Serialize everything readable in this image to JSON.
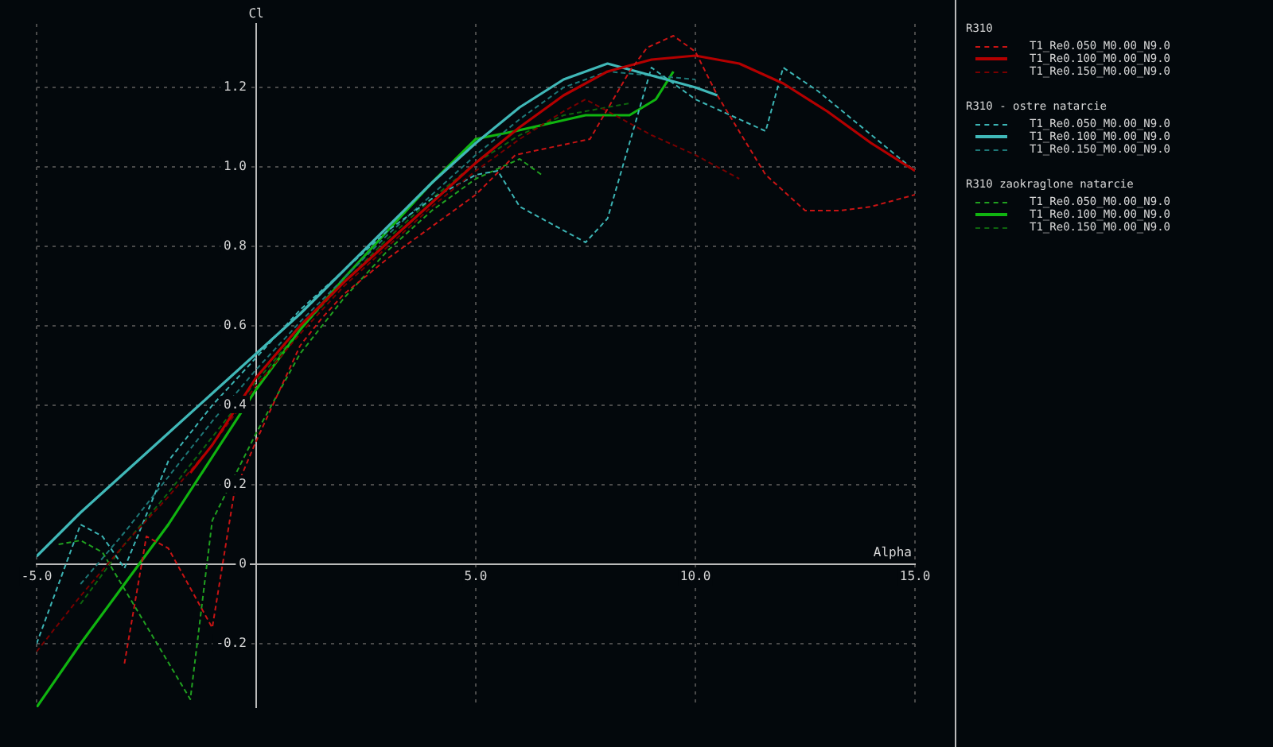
{
  "chart_data": {
    "type": "line",
    "xlabel": "Alpha",
    "ylabel": "Cl",
    "xlim": [
      -5,
      15
    ],
    "ylim": [
      -0.36,
      1.36
    ],
    "xticks": [
      {
        "value": -5,
        "label": "-5.0"
      },
      {
        "value": 0,
        "label": null
      },
      {
        "value": 5,
        "label": "5.0"
      },
      {
        "value": 10,
        "label": "10.0"
      },
      {
        "value": 15,
        "label": "15.0"
      }
    ],
    "yticks": [
      {
        "value": -0.2,
        "label": "-0.2"
      },
      0,
      {
        "value": 0.2,
        "label": "0.2"
      },
      {
        "value": 0.4,
        "label": "0.4"
      },
      {
        "value": 0.6,
        "label": "0.6"
      },
      {
        "value": 0.8,
        "label": "0.8"
      },
      {
        "value": 1.0,
        "label": "1.0"
      },
      {
        "value": 1.2,
        "label": "1.2"
      }
    ],
    "grid": true,
    "legend": "top right",
    "marker": "none",
    "annotations": [
      "R310",
      "R310 - ostre natarcie",
      "R310 zaokraglone natarcie"
    ],
    "series": [
      {
        "name": "T1_Re0.050_M0.00_N9.0",
        "color": "#c81414",
        "line_style": "dashed",
        "x": [
          -3,
          -2.5,
          -2,
          -1,
          -0.5,
          0,
          0.5,
          1,
          1.5,
          2,
          3,
          4,
          5,
          5.9,
          7.6,
          8.5,
          8.9,
          9.5,
          10,
          10.5,
          11.6,
          12.5,
          13.3,
          14,
          15
        ],
        "values": [
          -0.25,
          0.07,
          0.04,
          -0.16,
          0.18,
          0.31,
          0.43,
          0.55,
          0.62,
          0.68,
          0.77,
          0.85,
          0.93,
          1.03,
          1.07,
          1.24,
          1.3,
          1.33,
          1.29,
          1.18,
          0.98,
          0.89,
          0.89,
          0.9,
          0.93
        ]
      },
      {
        "name": "T1_Re0.100_M0.00_N9.0",
        "color": "#b40000",
        "line_style": "solid",
        "x": [
          -1.5,
          -1,
          0,
          1,
          2,
          3,
          4,
          5,
          6,
          7,
          8,
          9,
          10,
          11,
          12,
          13,
          14,
          15
        ],
        "values": [
          0.23,
          0.3,
          0.47,
          0.6,
          0.71,
          0.81,
          0.91,
          1.01,
          1.1,
          1.18,
          1.24,
          1.27,
          1.28,
          1.26,
          1.21,
          1.14,
          1.06,
          0.99
        ]
      },
      {
        "name": "T1_Re0.150_M0.00_N9.0",
        "color": "#780000",
        "line_style": "dashed",
        "x": [
          -5,
          -4,
          -3,
          -2,
          -1,
          0,
          1,
          2,
          3,
          4,
          5,
          6,
          7,
          7.5,
          8,
          9,
          10,
          11
        ],
        "values": [
          -0.22,
          -0.08,
          0.05,
          0.17,
          0.3,
          0.45,
          0.58,
          0.7,
          0.8,
          0.9,
          0.99,
          1.07,
          1.14,
          1.17,
          1.14,
          1.08,
          1.03,
          0.97
        ]
      },
      {
        "name": "T1_Re0.050_M0.00_N9.0",
        "color": "#3cb4b4",
        "line_style": "dashed",
        "x": [
          -5,
          -4,
          -3.5,
          -3,
          -2,
          -1,
          0,
          1,
          2,
          3,
          4,
          5,
          5.5,
          6,
          7.5,
          8,
          9,
          10,
          11.6,
          12,
          12.8,
          15
        ],
        "values": [
          -0.2,
          0.1,
          0.07,
          -0.01,
          0.26,
          0.4,
          0.52,
          0.64,
          0.74,
          0.84,
          0.92,
          0.98,
          0.99,
          0.9,
          0.81,
          0.87,
          1.25,
          1.17,
          1.09,
          1.25,
          1.19,
          0.99
        ]
      },
      {
        "name": "T1_Re0.100_M0.00_N9.0",
        "color": "#40b8b8",
        "line_style": "solid",
        "x": [
          -5,
          -4,
          -3,
          -2,
          -1,
          0,
          1,
          2,
          3,
          4,
          5,
          6,
          7,
          8,
          9,
          10,
          10.5
        ],
        "values": [
          0.02,
          0.13,
          0.23,
          0.33,
          0.43,
          0.53,
          0.63,
          0.74,
          0.85,
          0.96,
          1.06,
          1.15,
          1.22,
          1.26,
          1.23,
          1.2,
          1.18
        ]
      },
      {
        "name": "T1_Re0.150_M0.00_N9.0",
        "color": "#1e7878",
        "line_style": "dashed",
        "x": [
          -4,
          -3,
          -2,
          -1,
          0,
          1,
          2,
          3,
          4,
          5,
          6,
          7,
          8,
          9,
          10
        ],
        "values": [
          -0.05,
          0.08,
          0.22,
          0.36,
          0.49,
          0.61,
          0.72,
          0.83,
          0.93,
          1.03,
          1.12,
          1.2,
          1.24,
          1.23,
          1.22
        ]
      },
      {
        "name": "T1_Re0.050_M0.00_N9.0",
        "color": "#20a020",
        "line_style": "dashed",
        "x": [
          -4.5,
          -4,
          -3.5,
          -1.5,
          -1,
          0,
          1,
          2,
          3,
          4,
          5,
          6,
          6.5
        ],
        "values": [
          0.05,
          0.06,
          0.03,
          -0.34,
          0.11,
          0.33,
          0.53,
          0.67,
          0.79,
          0.89,
          0.97,
          1.02,
          0.98
        ]
      },
      {
        "name": "T1_Re0.100_M0.00_N9.0",
        "color": "#10b410",
        "line_style": "solid",
        "x": [
          -5,
          -4,
          -3,
          -2,
          -1,
          0,
          1,
          2,
          3,
          4,
          5,
          5.9,
          7.5,
          8.5,
          9.1,
          9.5
        ],
        "values": [
          -0.36,
          -0.2,
          -0.05,
          0.1,
          0.27,
          0.44,
          0.59,
          0.72,
          0.84,
          0.96,
          1.07,
          1.09,
          1.13,
          1.13,
          1.17,
          1.24
        ]
      },
      {
        "name": "T1_Re0.150_M0.00_N9.0",
        "color": "#0e640e",
        "line_style": "dashed",
        "x": [
          -4,
          -3,
          -2,
          -1,
          0,
          1,
          2,
          3,
          4,
          5,
          6,
          7,
          8,
          8.5
        ],
        "values": [
          -0.1,
          0.05,
          0.18,
          0.32,
          0.46,
          0.59,
          0.71,
          0.82,
          0.92,
          1.01,
          1.08,
          1.13,
          1.15,
          1.16
        ]
      }
    ]
  }
}
